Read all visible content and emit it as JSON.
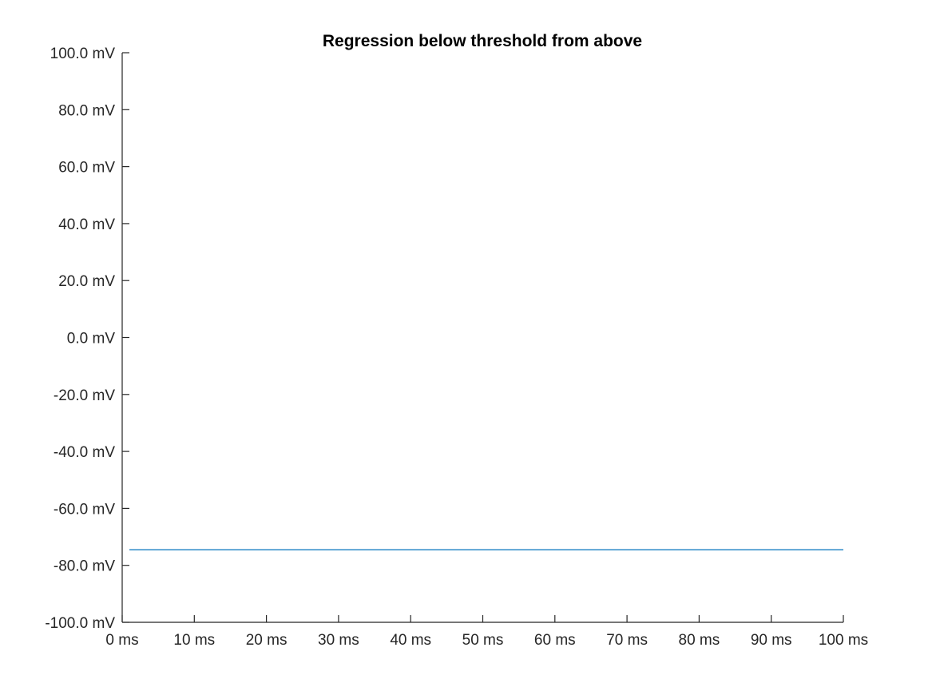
{
  "chart_data": {
    "type": "line",
    "title": "Regression below threshold from above",
    "xlabel": "",
    "ylabel": "",
    "xlim": [
      0,
      100
    ],
    "ylim": [
      -100,
      100
    ],
    "x_ticks": [
      {
        "value": 0,
        "label": "0 ms"
      },
      {
        "value": 10,
        "label": "10 ms"
      },
      {
        "value": 20,
        "label": "20 ms"
      },
      {
        "value": 30,
        "label": "30 ms"
      },
      {
        "value": 40,
        "label": "40 ms"
      },
      {
        "value": 50,
        "label": "50 ms"
      },
      {
        "value": 60,
        "label": "60 ms"
      },
      {
        "value": 70,
        "label": "70 ms"
      },
      {
        "value": 80,
        "label": "80 ms"
      },
      {
        "value": 90,
        "label": "90 ms"
      },
      {
        "value": 100,
        "label": "100 ms"
      }
    ],
    "y_ticks": [
      {
        "value": 100,
        "label": "100.0 mV"
      },
      {
        "value": 80,
        "label": "80.0 mV"
      },
      {
        "value": 60,
        "label": "60.0 mV"
      },
      {
        "value": 40,
        "label": "40.0 mV"
      },
      {
        "value": 20,
        "label": "20.0 mV"
      },
      {
        "value": 0,
        "label": "0.0 mV"
      },
      {
        "value": -20,
        "label": "-20.0 mV"
      },
      {
        "value": -40,
        "label": "-40.0 mV"
      },
      {
        "value": -60,
        "label": "-60.0 mV"
      },
      {
        "value": -80,
        "label": "-80.0 mV"
      },
      {
        "value": -100,
        "label": "-100.0 mV"
      }
    ],
    "grid": false,
    "legend": "none",
    "series": [
      {
        "color": "#0072bd",
        "x": [
          1,
          100
        ],
        "y": [
          -74.5,
          -74.5
        ]
      }
    ]
  }
}
